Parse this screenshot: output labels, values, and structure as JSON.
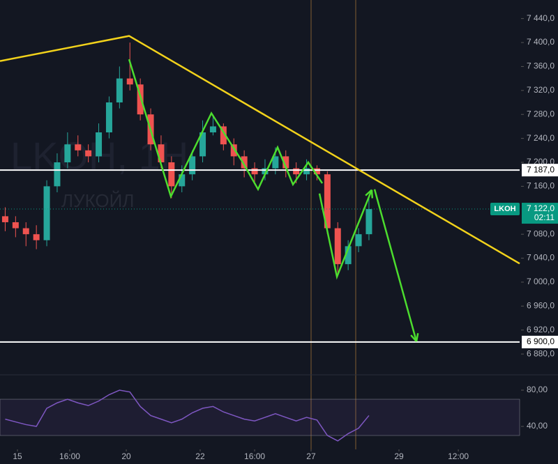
{
  "chart_data": [
    {
      "type": "candlestick",
      "watermark": "LKOH, 1Н",
      "watermark_sub": "ЛУКОЙЛ",
      "x": [
        0,
        1,
        2,
        3,
        4,
        5,
        6,
        7,
        8,
        9,
        10,
        11,
        12,
        13,
        14,
        15,
        16,
        17,
        18,
        19,
        20,
        21,
        22,
        23,
        24,
        25,
        26,
        27,
        28,
        29,
        30,
        31,
        32,
        33,
        34,
        35
      ],
      "open": [
        7110,
        7100,
        7090,
        7080,
        7070,
        7160,
        7200,
        7230,
        7220,
        7210,
        7250,
        7300,
        7340,
        7330,
        7280,
        7230,
        7200,
        7160,
        7180,
        7210,
        7250,
        7260,
        7230,
        7210,
        7190,
        7180,
        7190,
        7210,
        7190,
        7180,
        7190,
        7180,
        7090,
        7030,
        7060,
        7080
      ],
      "high": [
        7125,
        7110,
        7100,
        7095,
        7170,
        7215,
        7250,
        7245,
        7230,
        7265,
        7310,
        7360,
        7400,
        7340,
        7290,
        7245,
        7210,
        7195,
        7220,
        7270,
        7280,
        7265,
        7240,
        7220,
        7200,
        7205,
        7225,
        7220,
        7200,
        7205,
        7195,
        7185,
        7100,
        7070,
        7090,
        7140
      ],
      "low": [
        7085,
        7075,
        7060,
        7055,
        7060,
        7150,
        7190,
        7210,
        7200,
        7200,
        7240,
        7290,
        7320,
        7270,
        7220,
        7190,
        7140,
        7150,
        7170,
        7200,
        7245,
        7220,
        7195,
        7175,
        7165,
        7170,
        7180,
        7175,
        7165,
        7170,
        7170,
        7080,
        7010,
        7020,
        7050,
        7070
      ],
      "close": [
        7100,
        7090,
        7080,
        7070,
        7160,
        7200,
        7230,
        7220,
        7210,
        7250,
        7300,
        7340,
        7330,
        7280,
        7230,
        7200,
        7160,
        7180,
        7210,
        7250,
        7260,
        7230,
        7210,
        7190,
        7180,
        7190,
        7210,
        7190,
        7180,
        7190,
        7180,
        7090,
        7030,
        7060,
        7080,
        7122
      ],
      "up_color": "#26a69a",
      "down_color": "#ef5350",
      "xlim": [
        -0.5,
        49.5
      ],
      "xticks": [
        {
          "value": 1.18,
          "label": "15"
        },
        {
          "value": 6.21,
          "label": "16:00"
        },
        {
          "value": 11.65,
          "label": "20"
        },
        {
          "value": 18.76,
          "label": "22"
        },
        {
          "value": 24.0,
          "label": "16:00"
        },
        {
          "value": 29.43,
          "label": "27"
        },
        {
          "value": 37.89,
          "label": "29"
        },
        {
          "value": 43.6,
          "label": "12:00"
        }
      ],
      "ylim": [
        6872,
        7471
      ],
      "yticks": [
        {
          "value": 7440,
          "label": "7 440,0"
        },
        {
          "value": 7400,
          "label": "7 400,0"
        },
        {
          "value": 7360,
          "label": "7 360,0"
        },
        {
          "value": 7320,
          "label": "7 320,0"
        },
        {
          "value": 7280,
          "label": "7 280,0"
        },
        {
          "value": 7240,
          "label": "7 240,0"
        },
        {
          "value": 7200,
          "label": "7 200,0"
        },
        {
          "value": 7160,
          "label": "7 160,0"
        },
        {
          "value": 7080,
          "label": "7 080,0"
        },
        {
          "value": 7040,
          "label": "7 040,0"
        },
        {
          "value": 7000,
          "label": "7 000,0"
        },
        {
          "value": 6960,
          "label": "6 960,0"
        },
        {
          "value": 6920,
          "label": "6 920,0"
        },
        {
          "value": 6880,
          "label": "6 880,0"
        }
      ],
      "levels": [
        {
          "value": 7187,
          "label": "7 187,0"
        },
        {
          "value": 6900,
          "label": "6 900,0"
        }
      ],
      "last_price": {
        "value": 7122,
        "label": "7 122,0",
        "symbol": "LKOH",
        "countdown": "02:11"
      },
      "trendline": {
        "color": "#f2d21b",
        "x": [
          -0.5,
          11.92,
          49.5
        ],
        "y": [
          7369,
          7411,
          7031
        ]
      },
      "zigzags": [
        {
          "color": "#4cdd2e",
          "x": [
            11.92,
            15.94,
            19.84,
            22.86,
            24.33,
            26.21,
            27.69,
            29.16,
            30.51
          ],
          "y": [
            7372,
            7143,
            7282,
            7200,
            7155,
            7225,
            7163,
            7200,
            7165
          ]
        },
        {
          "color": "#4cdd2e",
          "x": [
            30.24,
            31.92,
            35.27
          ],
          "y": [
            7148,
            7009,
            7154
          ]
        },
        {
          "color": "#4cdd2e",
          "x": [
            35.54,
            39.57
          ],
          "y": [
            7155,
            6901
          ]
        }
      ]
    },
    {
      "type": "line",
      "x": [
        0,
        1,
        2,
        3,
        4,
        5,
        6,
        7,
        8,
        9,
        10,
        11,
        12,
        13,
        14,
        15,
        16,
        17,
        18,
        19,
        20,
        21,
        22,
        23,
        24,
        25,
        26,
        27,
        28,
        29,
        30,
        31,
        32,
        33,
        34,
        35
      ],
      "values": [
        48,
        45,
        42,
        40,
        60,
        66,
        70,
        66,
        63,
        68,
        75,
        80,
        78,
        62,
        52,
        48,
        44,
        48,
        55,
        60,
        62,
        56,
        52,
        48,
        46,
        50,
        54,
        50,
        46,
        50,
        47,
        30,
        24,
        32,
        38,
        52
      ],
      "color": "#7e57c2",
      "ylim": [
        18.5,
        95.4
      ],
      "band": [
        30,
        70
      ],
      "yticks": [
        {
          "value": 80,
          "label": "80,00"
        },
        {
          "value": 40,
          "label": "40,00"
        }
      ]
    }
  ]
}
